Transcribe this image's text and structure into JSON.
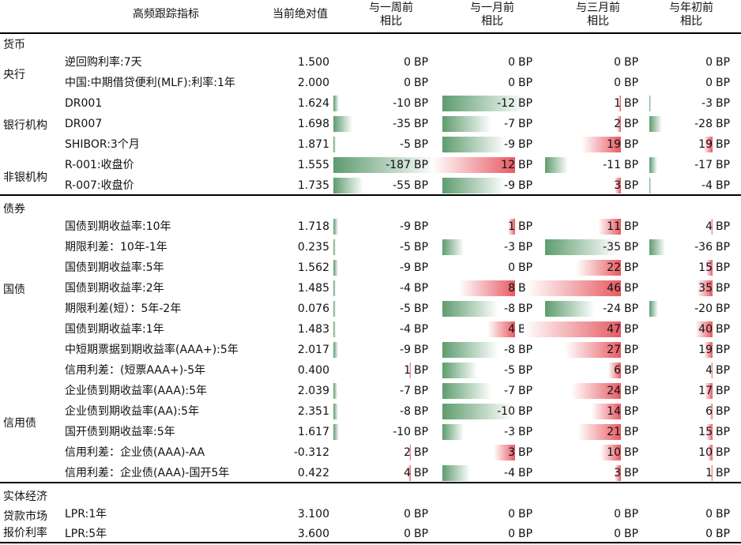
{
  "columns": {
    "indicator": "高频跟踪指标",
    "value": "当前绝对值",
    "w1": [
      "与一周前",
      "相比"
    ],
    "m1": [
      "与一月前",
      "相比"
    ],
    "m3": [
      "与三月前",
      "相比"
    ],
    "ytd": [
      "与年初前",
      "相比"
    ]
  },
  "unit": "BP",
  "sections": [
    "货币",
    "债券",
    "实体经济"
  ],
  "groups": [
    "央行",
    "银行机构",
    "非银机构",
    "国债",
    "信用债",
    "贷款市场",
    "报价利率"
  ],
  "rows": [
    {
      "label": "逆回购利率:7天",
      "value": "1.500",
      "w1": 0,
      "m1": 0,
      "m3": 0,
      "ytd": 0
    },
    {
      "label": "中国:中期借贷便利(MLF):利率:1年",
      "value": "2.000",
      "w1": 0,
      "m1": 0,
      "m3": 0,
      "ytd": 0
    },
    {
      "label": "DR001",
      "value": "1.624",
      "w1": -10,
      "m1": -12,
      "m3": 1,
      "ytd": -3
    },
    {
      "label": "DR007",
      "value": "1.698",
      "w1": -35,
      "m1": -7,
      "m3": 2,
      "ytd": -28
    },
    {
      "label": "SHIBOR:3个月",
      "value": "1.871",
      "w1": -5,
      "m1": -9,
      "m3": 19,
      "ytd": 19
    },
    {
      "label": "R-001:收盘价",
      "value": "1.555",
      "w1": -187,
      "m1": 12,
      "m3": -11,
      "ytd": -17
    },
    {
      "label": "R-007:收盘价",
      "value": "1.735",
      "w1": -55,
      "m1": -9,
      "m3": 3,
      "ytd": -4
    },
    {
      "label": "国债到期收益率:10年",
      "value": "1.718",
      "w1": -9,
      "m1": 1,
      "m3": 11,
      "ytd": 4
    },
    {
      "label": "期限利差：10年-1年",
      "value": "0.235",
      "w1": -5,
      "m1": -3,
      "m3": -35,
      "ytd": -36
    },
    {
      "label": "国债到期收益率:5年",
      "value": "1.562",
      "w1": -9,
      "m1": 0,
      "m3": 22,
      "ytd": 15
    },
    {
      "label": "国债到期收益率:2年",
      "value": "1.485",
      "w1": -4,
      "m1": 8,
      "m3": 46,
      "ytd": 35
    },
    {
      "label": "期限利差(短）：5年-2年",
      "value": "0.076",
      "w1": -5,
      "m1": -8,
      "m3": -24,
      "ytd": -20
    },
    {
      "label": "国债到期收益率:1年",
      "value": "1.483",
      "w1": -4,
      "m1": 4,
      "m3": 47,
      "ytd": 40
    },
    {
      "label": "中短期票据到期收益率(AAA+):5年",
      "value": "2.017",
      "w1": -9,
      "m1": -8,
      "m3": 27,
      "ytd": 19
    },
    {
      "label": "信用利差：(短票AAA+)-5年",
      "value": "0.400",
      "w1": 1,
      "m1": -5,
      "m3": 6,
      "ytd": 4
    },
    {
      "label": "企业债到期收益率(AAA):5年",
      "value": "2.039",
      "w1": -7,
      "m1": -7,
      "m3": 24,
      "ytd": 17
    },
    {
      "label": "企业债到期收益率(AA):5年",
      "value": "2.351",
      "w1": -8,
      "m1": -10,
      "m3": 14,
      "ytd": 6
    },
    {
      "label": "国开债到期收益率:5年",
      "value": "1.617",
      "w1": -10,
      "m1": -3,
      "m3": 21,
      "ytd": 15
    },
    {
      "label": "信用利差：企业债(AAA)-AA",
      "value": "-0.312",
      "w1": 2,
      "m1": 3,
      "m3": 10,
      "ytd": 10
    },
    {
      "label": "信用利差：企业债(AAA)-国开5年",
      "value": "0.422",
      "w1": 4,
      "m1": -4,
      "m3": 3,
      "ytd": 1
    },
    {
      "label": "LPR:1年",
      "value": "3.100",
      "w1": 0,
      "m1": 0,
      "m3": 0,
      "ytd": 0
    },
    {
      "label": "LPR:5年",
      "value": "3.600",
      "w1": 0,
      "m1": 0,
      "m3": 0,
      "ytd": 0
    }
  ]
}
